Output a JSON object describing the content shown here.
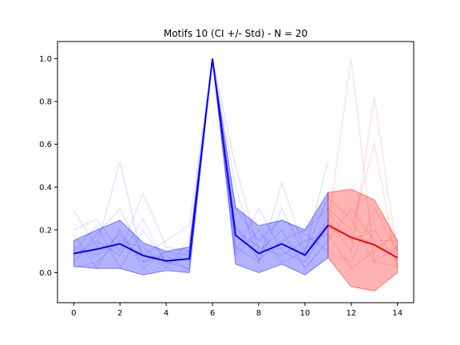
{
  "chart_data": {
    "type": "line",
    "title": "Motifs 10 (CI +/- Std) - N = 20",
    "xlabel": "",
    "ylabel": "",
    "xlim": [
      -0.7,
      14.7
    ],
    "ylim": [
      -0.14,
      1.08
    ],
    "xticks": [
      0,
      2,
      4,
      6,
      8,
      10,
      12,
      14
    ],
    "yticks": [
      0.0,
      0.2,
      0.4,
      0.6,
      0.8,
      1.0
    ],
    "grid": false,
    "colors": {
      "history_mean": "#0000ff",
      "history_band": "#0000ff",
      "forecast_mean": "#ff0000",
      "forecast_band": "#ff0000"
    },
    "series": [
      {
        "role": "history-mean",
        "x": [
          0,
          1,
          2,
          3,
          4,
          5,
          6,
          7,
          8,
          9,
          10,
          11
        ],
        "y": [
          0.09,
          0.11,
          0.135,
          0.08,
          0.055,
          0.065,
          1.0,
          0.175,
          0.09,
          0.135,
          0.082,
          0.222
        ],
        "upper": [
          0.15,
          0.2,
          0.245,
          0.14,
          0.1,
          0.12,
          1.0,
          0.305,
          0.22,
          0.245,
          0.2,
          0.375
        ],
        "lower": [
          0.03,
          0.02,
          0.02,
          -0.01,
          0.01,
          0.0,
          1.0,
          0.04,
          0.0,
          0.04,
          -0.01,
          0.07
        ]
      },
      {
        "role": "forecast-mean",
        "x": [
          11,
          12,
          13,
          14
        ],
        "y": [
          0.222,
          0.165,
          0.13,
          0.07
        ],
        "upper": [
          0.375,
          0.39,
          0.34,
          0.15
        ],
        "lower": [
          0.07,
          -0.065,
          -0.085,
          0.0
        ]
      }
    ],
    "individual_history": [
      [
        0.29,
        0.12,
        0.52,
        0.05,
        0.1,
        0.08,
        1.0,
        0.4,
        0.05,
        0.42,
        0.1,
        0.52
      ],
      [
        0.2,
        0.25,
        0.1,
        0.37,
        0.12,
        0.1,
        1.0,
        0.22,
        0.06,
        0.15,
        0.2,
        0.3
      ],
      [
        0.05,
        0.18,
        0.3,
        0.08,
        0.15,
        0.22,
        1.0,
        0.1,
        0.3,
        0.1,
        0.05,
        0.22
      ],
      [
        0.1,
        0.22,
        0.02,
        0.2,
        0.05,
        0.02,
        1.0,
        0.3,
        0.15,
        0.25,
        0.18,
        0.1
      ],
      [
        0.02,
        0.05,
        0.15,
        0.12,
        0.02,
        0.15,
        1.0,
        0.08,
        0.2,
        0.05,
        0.1,
        0.35
      ],
      [
        0.18,
        0.02,
        0.2,
        0.02,
        0.1,
        0.05,
        1.0,
        0.5,
        0.1,
        0.2,
        0.02,
        0.15
      ],
      [
        0.08,
        0.15,
        0.08,
        0.25,
        0.04,
        0.1,
        1.0,
        0.12,
        0.05,
        0.3,
        0.08,
        0.25
      ],
      [
        0.12,
        0.08,
        0.18,
        0.05,
        0.08,
        0.01,
        1.0,
        0.2,
        0.12,
        0.08,
        0.15,
        0.18
      ]
    ],
    "individual_forecast": [
      [
        0.22,
        1.0,
        0.05,
        0.03
      ],
      [
        0.25,
        0.1,
        0.82,
        0.08
      ],
      [
        0.3,
        0.2,
        0.6,
        0.02
      ],
      [
        0.18,
        0.02,
        0.1,
        0.19
      ],
      [
        0.35,
        0.25,
        0.05,
        0.12
      ],
      [
        0.1,
        0.05,
        0.3,
        0.1
      ],
      [
        0.28,
        0.15,
        0.2,
        0.05
      ],
      [
        0.15,
        0.3,
        0.15,
        0.15
      ]
    ]
  }
}
